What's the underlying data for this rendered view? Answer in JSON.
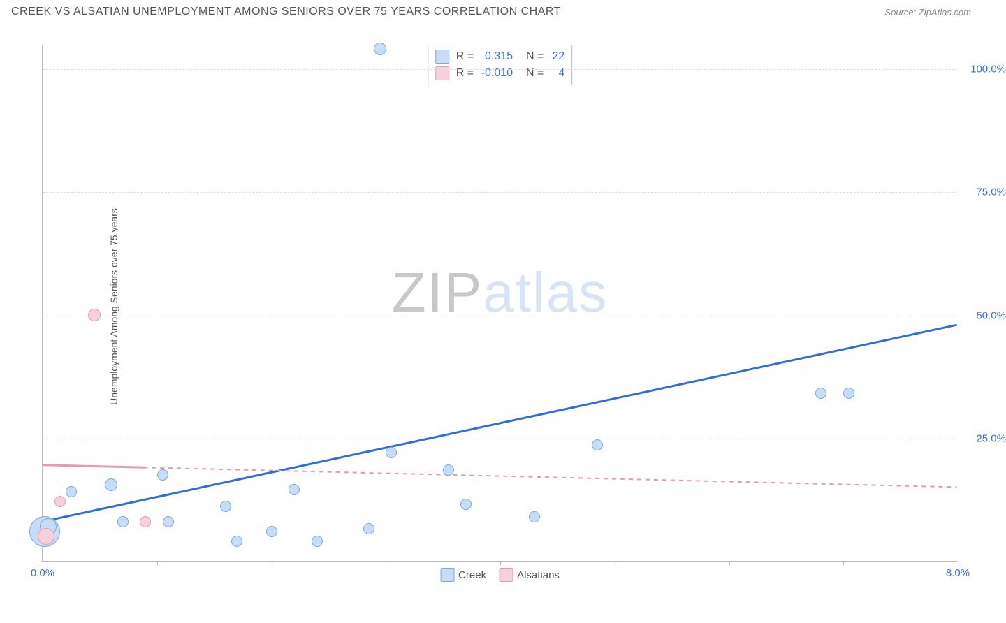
{
  "title": "CREEK VS ALSATIAN UNEMPLOYMENT AMONG SENIORS OVER 75 YEARS CORRELATION CHART",
  "source": "Source: ZipAtlas.com",
  "y_axis_label": "Unemployment Among Seniors over 75 years",
  "watermark_a": "ZIP",
  "watermark_b": "atlas",
  "chart": {
    "type": "scatter",
    "xlim": [
      0.0,
      8.0
    ],
    "ylim": [
      0.0,
      105.0
    ],
    "x_ticks": [
      0.0,
      1.0,
      2.0,
      3.0,
      4.0,
      5.0,
      6.0,
      7.0,
      8.0
    ],
    "x_tick_labels": {
      "0": "0.0%",
      "8": "8.0%"
    },
    "y_ticks": [
      25.0,
      50.0,
      75.0,
      100.0
    ],
    "y_tick_labels": [
      "25.0%",
      "50.0%",
      "75.0%",
      "100.0%"
    ],
    "grid_color": "#dddddd",
    "axis_color": "#bbbbbb",
    "background_color": "#ffffff",
    "series": [
      {
        "name": "Creek",
        "fill": "#c6ddf5",
        "stroke": "#7aa8e0",
        "line_color": "#2e6fd6",
        "line_width": 3,
        "line_dash": "solid",
        "R": "0.315",
        "N": "22",
        "trend": {
          "x1": 0.0,
          "y1": 8.0,
          "x2": 8.0,
          "y2": 48.0
        },
        "points": [
          {
            "x": 0.02,
            "y": 6.0,
            "r": 22
          },
          {
            "x": 0.05,
            "y": 7.0,
            "r": 12
          },
          {
            "x": 0.25,
            "y": 14.0,
            "r": 8
          },
          {
            "x": 0.6,
            "y": 15.5,
            "r": 9
          },
          {
            "x": 0.7,
            "y": 8.0,
            "r": 8
          },
          {
            "x": 1.05,
            "y": 17.5,
            "r": 8
          },
          {
            "x": 1.1,
            "y": 8.0,
            "r": 8
          },
          {
            "x": 1.6,
            "y": 11.0,
            "r": 8
          },
          {
            "x": 1.7,
            "y": 4.0,
            "r": 8
          },
          {
            "x": 2.0,
            "y": 6.0,
            "r": 8
          },
          {
            "x": 2.2,
            "y": 14.5,
            "r": 8
          },
          {
            "x": 2.4,
            "y": 4.0,
            "r": 8
          },
          {
            "x": 2.85,
            "y": 6.5,
            "r": 8
          },
          {
            "x": 2.95,
            "y": 104.0,
            "r": 9
          },
          {
            "x": 3.05,
            "y": 22.0,
            "r": 8
          },
          {
            "x": 3.55,
            "y": 18.5,
            "r": 8
          },
          {
            "x": 3.7,
            "y": 11.5,
            "r": 8
          },
          {
            "x": 4.3,
            "y": 9.0,
            "r": 8
          },
          {
            "x": 4.85,
            "y": 23.5,
            "r": 8
          },
          {
            "x": 6.8,
            "y": 34.0,
            "r": 8
          },
          {
            "x": 7.05,
            "y": 34.0,
            "r": 8
          }
        ]
      },
      {
        "name": "Alsatians",
        "fill": "#f6d1dc",
        "stroke": "#e59ab1",
        "line_color": "#e59ab1",
        "line_width": 2,
        "line_dash": "dashed",
        "R": "-0.010",
        "N": "4",
        "trend": {
          "x1": 0.0,
          "y1": 19.5,
          "x2": 8.0,
          "y2": 15.0
        },
        "solid_segment": {
          "x1": 0.0,
          "y1": 19.5,
          "x2": 0.9,
          "y2": 19.0
        },
        "points": [
          {
            "x": 0.03,
            "y": 5.0,
            "r": 12
          },
          {
            "x": 0.15,
            "y": 12.0,
            "r": 8
          },
          {
            "x": 0.45,
            "y": 50.0,
            "r": 9
          },
          {
            "x": 0.9,
            "y": 8.0,
            "r": 8
          }
        ]
      }
    ]
  },
  "legend": {
    "items": [
      {
        "label": "Creek",
        "fill": "#c6ddf5",
        "stroke": "#7aa8e0"
      },
      {
        "label": "Alsatians",
        "fill": "#f6d1dc",
        "stroke": "#e59ab1"
      }
    ]
  }
}
